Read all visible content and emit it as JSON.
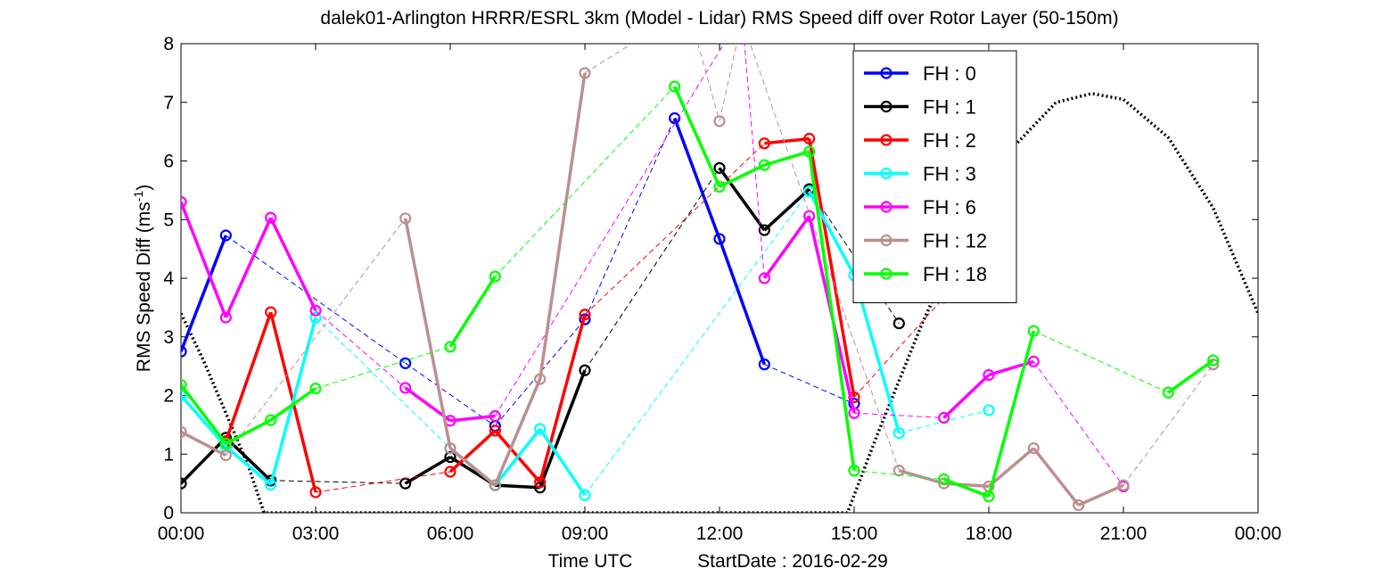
{
  "chart_data": {
    "type": "line",
    "title": "dalek01-Arlington HRRR/ESRL 3km (Model - Lidar) RMS Speed diff over Rotor Layer (50-150m)",
    "xlabel": "Time UTC",
    "xlabel_extra": "StartDate : 2016-02-29",
    "ylabel_main": "RMS Speed Diff (ms",
    "ylabel_sup": "-1",
    "ylabel_close": ")",
    "xlim": [
      0,
      24
    ],
    "ylim": [
      0,
      8
    ],
    "x_units": "hours UTC",
    "x_tick_values": [
      0,
      3,
      6,
      9,
      12,
      15,
      18,
      21,
      24
    ],
    "x_tick_labels": [
      "00:00",
      "03:00",
      "06:00",
      "09:00",
      "12:00",
      "15:00",
      "18:00",
      "21:00",
      "00:00"
    ],
    "y_tick_values": [
      0,
      1,
      2,
      3,
      4,
      5,
      6,
      7,
      8
    ],
    "y_tick_labels": [
      "0",
      "1",
      "2",
      "3",
      "4",
      "5",
      "6",
      "7",
      "8"
    ],
    "grid": false,
    "legend_position": "top-right (inside)",
    "series": [
      {
        "name": "FH : 0",
        "color": "#0000ff",
        "points": [
          [
            0,
            2.75
          ],
          [
            1,
            4.73
          ],
          [
            2,
            null
          ],
          [
            5,
            2.55
          ],
          [
            7,
            1.48
          ],
          [
            9,
            3.3
          ],
          [
            11,
            6.73
          ],
          [
            12,
            4.67
          ],
          [
            13,
            2.53
          ],
          [
            15,
            1.86
          ]
        ]
      },
      {
        "name": "FH : 1",
        "color": "#000000",
        "points": [
          [
            0,
            0.5
          ],
          [
            1,
            1.28
          ],
          [
            2,
            0.55
          ],
          [
            5,
            0.5
          ],
          [
            6,
            0.95
          ],
          [
            7,
            0.47
          ],
          [
            8,
            0.43
          ],
          [
            9,
            2.43
          ],
          [
            12,
            5.88
          ],
          [
            13,
            4.82
          ],
          [
            14,
            5.52
          ],
          [
            16,
            3.23
          ]
        ]
      },
      {
        "name": "FH : 2",
        "color": "#ff0000",
        "points": [
          [
            0,
            null
          ],
          [
            1,
            1.22
          ],
          [
            2,
            3.42
          ],
          [
            3,
            0.35
          ],
          [
            6,
            0.7
          ],
          [
            7,
            1.4
          ],
          [
            8,
            0.52
          ],
          [
            9,
            3.38
          ],
          [
            13,
            6.3
          ],
          [
            14,
            6.38
          ],
          [
            15,
            1.97
          ],
          [
            17,
            3.67
          ]
        ]
      },
      {
        "name": "FH : 3",
        "color": "#00ffff",
        "points": [
          [
            0,
            2.0
          ],
          [
            1,
            1.13
          ],
          [
            2,
            0.48
          ],
          [
            3,
            3.33
          ],
          [
            6,
            1.1
          ],
          [
            7,
            0.47
          ],
          [
            8,
            1.43
          ],
          [
            9,
            0.3
          ],
          [
            14,
            5.48
          ],
          [
            15,
            4.05
          ],
          [
            16,
            1.36
          ],
          [
            18,
            1.75
          ]
        ]
      },
      {
        "name": "FH : 6",
        "color": "#ff00ff",
        "points": [
          [
            0,
            5.3
          ],
          [
            1,
            3.33
          ],
          [
            2,
            5.03
          ],
          [
            3,
            3.45
          ],
          [
            5,
            2.13
          ],
          [
            6,
            1.57
          ],
          [
            7,
            1.65
          ],
          [
            12.5,
            8.5
          ],
          [
            13,
            4.0
          ],
          [
            14,
            5.06
          ],
          [
            15,
            1.7
          ],
          [
            17,
            1.62
          ],
          [
            18,
            2.35
          ],
          [
            19,
            2.58
          ],
          [
            21,
            0.45
          ]
        ]
      },
      {
        "name": "FH : 12",
        "color": "#bc8f8f",
        "points": [
          [
            0,
            1.38
          ],
          [
            1,
            0.98
          ],
          [
            5,
            5.02
          ],
          [
            6,
            1.1
          ],
          [
            7,
            0.47
          ],
          [
            8,
            2.28
          ],
          [
            9,
            7.5
          ],
          [
            11.3,
            8.6
          ],
          [
            12,
            6.68
          ],
          [
            12.5,
            8.4
          ],
          [
            16,
            0.72
          ],
          [
            17,
            0.5
          ],
          [
            18,
            0.45
          ],
          [
            19,
            1.1
          ],
          [
            20,
            0.13
          ],
          [
            21,
            0.47
          ],
          [
            23,
            2.53
          ]
        ]
      },
      {
        "name": "FH : 18",
        "color": "#00ff00",
        "points": [
          [
            0,
            2.18
          ],
          [
            1,
            1.18
          ],
          [
            2,
            1.58
          ],
          [
            3,
            2.12
          ],
          [
            6,
            2.83
          ],
          [
            7,
            4.03
          ],
          [
            11,
            7.27
          ],
          [
            12,
            5.56
          ],
          [
            13,
            5.93
          ],
          [
            14,
            6.16
          ],
          [
            15,
            0.72
          ],
          [
            17,
            0.57
          ],
          [
            18,
            0.28
          ],
          [
            19,
            3.1
          ],
          [
            22,
            2.05
          ],
          [
            23,
            2.6
          ]
        ]
      }
    ],
    "daylight_curve": {
      "description": "dotted black curve",
      "color": "#000000",
      "points": [
        [
          0,
          3.4
        ],
        [
          0.5,
          2.6
        ],
        [
          1,
          1.7
        ],
        [
          1.5,
          0.8
        ],
        [
          1.85,
          0.0
        ],
        [
          14.85,
          0.0
        ],
        [
          15.5,
          1.3
        ],
        [
          16.5,
          3.2
        ],
        [
          17.5,
          4.9
        ],
        [
          18.5,
          6.2
        ],
        [
          19.5,
          7.0
        ],
        [
          20.3,
          7.15
        ],
        [
          21,
          7.05
        ],
        [
          22,
          6.4
        ],
        [
          23,
          5.2
        ],
        [
          24,
          3.4
        ]
      ]
    }
  }
}
